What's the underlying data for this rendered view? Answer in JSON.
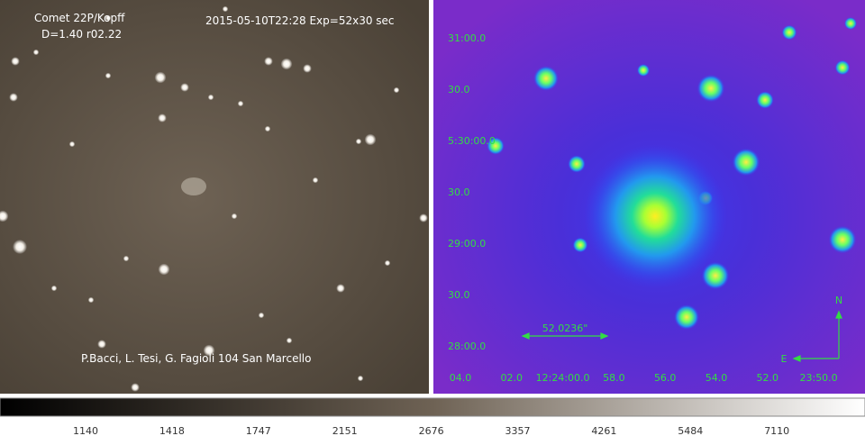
{
  "left_panel": {
    "object": "Comet 22P/Kopff",
    "distances": "D=1.40 r02.22",
    "exposure": "2015-05-10T22:28 Exp=52x30 sec",
    "credit": "P.Bacci, L. Tesi, G. Fagioli  104 San Marcello"
  },
  "right_panel": {
    "dec_labels": [
      "31:00.0",
      "30.0",
      "5:30:00.0",
      "30.0",
      "29:00.0",
      "30.0",
      "28:00.0"
    ],
    "ra_labels": [
      "04.0",
      "02.0",
      "12:24:00.0",
      "58.0",
      "56.0",
      "54.0",
      "52.0",
      "23:50.0"
    ],
    "scale": "52.0236\"",
    "north": "N",
    "east": "E"
  },
  "colorbar": {
    "ticks": [
      1140,
      1418,
      1747,
      2151,
      2676,
      3357,
      4261,
      5484,
      7110
    ]
  }
}
